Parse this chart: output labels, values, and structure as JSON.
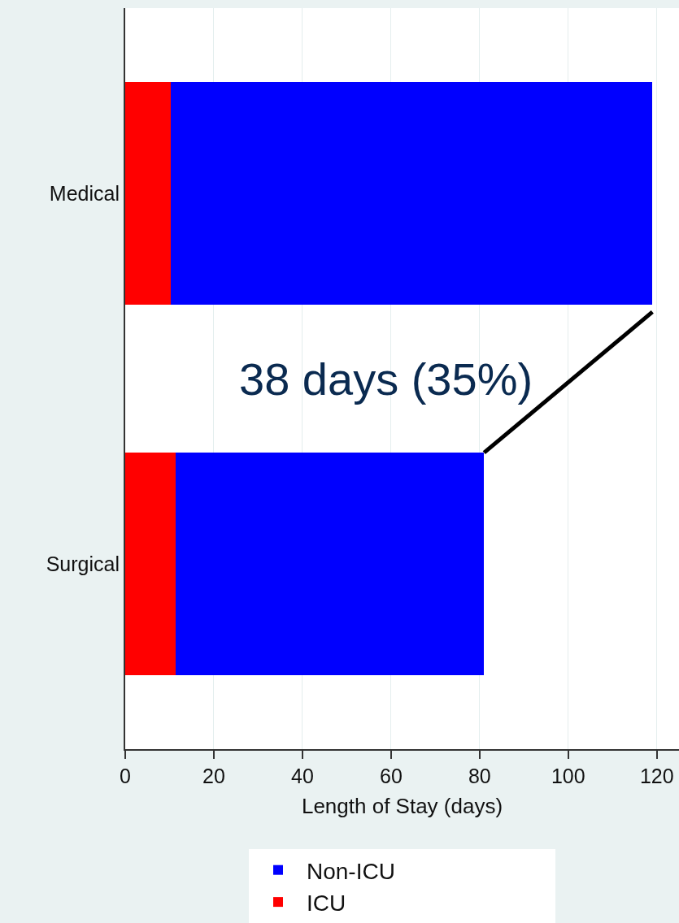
{
  "chart_data": {
    "type": "bar",
    "orientation": "horizontal",
    "stacked": true,
    "categories": [
      "Medical",
      "Surgical"
    ],
    "series": [
      {
        "name": "ICU",
        "color": "#ff0000",
        "values": [
          10.3,
          11.4
        ]
      },
      {
        "name": "Non-ICU",
        "color": "#0000ff",
        "values": [
          108.7,
          69.6
        ]
      }
    ],
    "xlabel": "Length of Stay (days)",
    "xlim": [
      0,
      125
    ],
    "xticks": [
      0,
      20,
      40,
      60,
      80,
      100,
      120
    ],
    "grid": "x",
    "legend": "bottom",
    "annotations": [
      "38 days (35%)"
    ]
  }
}
